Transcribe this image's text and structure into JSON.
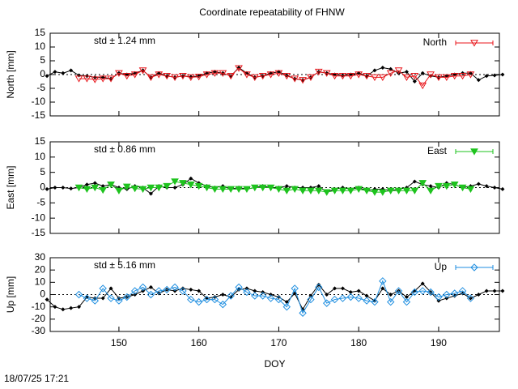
{
  "title": "Coordinate repeatability of FHNW",
  "footer": "18/07/25 17:21",
  "chart_data": [
    {
      "type": "line",
      "ylabel": "North [mm]",
      "annotation": "std ± 1.24 mm",
      "annotation_color": "#e8161b",
      "xlim": [
        141.4,
        197.6
      ],
      "ylim": [
        -15,
        15
      ],
      "yticks": [
        -15,
        -10,
        -5,
        0,
        5,
        10,
        15
      ],
      "series": [
        {
          "name": "North",
          "color": "#e8161b",
          "marker": "triangle-down-open",
          "x": [
            145,
            146,
            147,
            148,
            149,
            150,
            151,
            152,
            153,
            154,
            155,
            156,
            157,
            158,
            159,
            160,
            161,
            162,
            163,
            164,
            165,
            166,
            167,
            168,
            169,
            170,
            171,
            172,
            173,
            174,
            175,
            176,
            177,
            178,
            179,
            180,
            181,
            182,
            183,
            184,
            185,
            186,
            187,
            188,
            189,
            190,
            191,
            192,
            193,
            194
          ],
          "values": [
            -1.5,
            -1.5,
            -1.8,
            -1.5,
            -1.5,
            0.5,
            -0.5,
            0,
            1.5,
            -1,
            0,
            -0.5,
            -1,
            -0.5,
            -1,
            -0.8,
            0,
            0.5,
            0.5,
            -0.5,
            2.3,
            0,
            -1,
            -0.5,
            0,
            0.5,
            -0.5,
            -1.5,
            -2,
            -1,
            1,
            0.5,
            -0.5,
            -0.5,
            -0.5,
            0,
            -0.5,
            -1,
            -1,
            0.5,
            1.5,
            -1,
            -0.5,
            -4,
            0,
            -1,
            -1,
            -0.5,
            -0.5,
            0
          ]
        },
        {
          "color": "#000000",
          "marker": "diamond-small",
          "x": [
            141,
            142,
            143,
            144,
            145,
            146,
            147,
            148,
            149,
            150,
            151,
            152,
            153,
            154,
            155,
            156,
            157,
            158,
            159,
            160,
            161,
            162,
            163,
            164,
            165,
            166,
            167,
            168,
            169,
            170,
            171,
            172,
            173,
            174,
            175,
            176,
            177,
            178,
            179,
            180,
            181,
            182,
            183,
            184,
            185,
            186,
            187,
            188,
            189,
            190,
            191,
            192,
            193,
            194,
            195,
            196,
            197,
            198
          ],
          "values": [
            -0.5,
            1,
            0.5,
            1.5,
            -0.3,
            -0.5,
            -1,
            -1,
            -1.5,
            0.5,
            0,
            0.5,
            1.5,
            -1,
            0.5,
            -0.5,
            -1,
            -0.5,
            -0.8,
            -0.5,
            0.5,
            1,
            0.5,
            -0.5,
            2.5,
            0.5,
            -1,
            -0.5,
            0.5,
            1,
            -0.3,
            -1.5,
            -2,
            -1,
            1,
            0.5,
            0,
            -0.3,
            0,
            0.5,
            -0.5,
            1.5,
            2.5,
            2,
            0.5,
            1,
            -2.5,
            0.5,
            -0.5,
            -1,
            -0.5,
            0,
            0.5,
            0.5,
            -2,
            -0.5,
            -0.3,
            0
          ]
        }
      ]
    },
    {
      "type": "line",
      "ylabel": "East [mm]",
      "annotation": "std ± 0.86 mm",
      "annotation_color": "#1ec31e",
      "xlim": [
        141.4,
        197.6
      ],
      "ylim": [
        -15,
        15
      ],
      "yticks": [
        -15,
        -10,
        -5,
        0,
        5,
        10,
        15
      ],
      "series": [
        {
          "name": "East",
          "color": "#1ec31e",
          "marker": "triangle-down",
          "x": [
            145,
            146,
            147,
            148,
            149,
            150,
            151,
            152,
            153,
            154,
            155,
            156,
            157,
            158,
            159,
            160,
            161,
            162,
            163,
            164,
            165,
            166,
            167,
            168,
            169,
            170,
            171,
            172,
            173,
            174,
            175,
            176,
            177,
            178,
            179,
            180,
            181,
            182,
            183,
            184,
            185,
            186,
            187,
            188,
            189,
            190,
            191,
            192,
            193,
            194
          ],
          "values": [
            0,
            -0.5,
            0,
            -0.8,
            1,
            -1,
            0.3,
            -0.3,
            -0.5,
            0,
            0,
            0.5,
            2,
            1.5,
            1,
            0.5,
            0,
            -0.5,
            -0.5,
            -0.5,
            -0.5,
            -0.5,
            0,
            0,
            0,
            -0.5,
            -1,
            -0.5,
            -1,
            -1,
            -1,
            -1.5,
            -1,
            -1,
            -1,
            -0.5,
            -1,
            -1.5,
            -1.5,
            -1,
            -1,
            -1,
            -1,
            1.5,
            -1,
            0.5,
            0.5,
            1,
            0,
            -0.5
          ]
        },
        {
          "color": "#000000",
          "marker": "diamond-small",
          "x": [
            141,
            142,
            143,
            144,
            145,
            146,
            147,
            148,
            149,
            150,
            151,
            152,
            153,
            154,
            155,
            156,
            157,
            158,
            159,
            160,
            161,
            162,
            163,
            164,
            165,
            166,
            167,
            168,
            169,
            170,
            171,
            172,
            173,
            174,
            175,
            176,
            177,
            178,
            179,
            180,
            181,
            182,
            183,
            184,
            185,
            186,
            187,
            188,
            189,
            190,
            191,
            192,
            193,
            194,
            195,
            196,
            197,
            198
          ],
          "values": [
            -0.5,
            0,
            0,
            -0.3,
            0,
            1,
            1.5,
            0.5,
            1,
            0,
            -0.5,
            0.5,
            0,
            -2,
            0.5,
            0,
            0,
            1,
            3,
            1.5,
            0.5,
            0,
            0.5,
            -0.5,
            0,
            -0.5,
            0,
            0.5,
            0,
            0,
            0.5,
            0,
            0,
            0,
            0.5,
            -1.5,
            -0.5,
            0,
            -0.5,
            0,
            -1,
            -0.5,
            -0.5,
            -1,
            -0.5,
            0,
            2,
            1,
            0.5,
            0,
            1.5,
            1,
            0,
            0.5,
            1.2,
            0.5,
            0,
            -0.5
          ]
        }
      ]
    },
    {
      "type": "line",
      "ylabel": "Up [mm]",
      "annotation": "std ± 5.16 mm",
      "annotation_color": "#1e8ee0",
      "xlabel": "DOY",
      "xlim": [
        141.4,
        197.6
      ],
      "xticks": [
        150,
        160,
        170,
        180,
        190
      ],
      "ylim": [
        -30,
        30
      ],
      "yticks": [
        -30,
        -20,
        -10,
        0,
        10,
        20,
        30
      ],
      "series": [
        {
          "name": "Up",
          "color": "#1e8ee0",
          "marker": "diamond-open",
          "x": [
            145,
            146,
            147,
            148,
            149,
            150,
            151,
            152,
            153,
            154,
            155,
            156,
            157,
            158,
            159,
            160,
            161,
            162,
            163,
            164,
            165,
            166,
            167,
            168,
            169,
            170,
            171,
            172,
            173,
            174,
            175,
            176,
            177,
            178,
            179,
            180,
            181,
            182,
            183,
            184,
            185,
            186,
            187,
            188,
            189,
            190,
            191,
            192,
            193,
            194
          ],
          "values": [
            0,
            -3,
            -5,
            5,
            -3,
            -5,
            -2,
            3,
            6,
            0,
            3,
            4,
            6,
            3,
            -4,
            -6,
            -4,
            -4,
            -8,
            -1,
            6,
            2,
            -1,
            -1,
            -3,
            -4,
            -10,
            5,
            -15,
            -4,
            6,
            -7,
            -4,
            -3,
            -2,
            -3,
            -5,
            -6,
            11,
            -6,
            3,
            -6,
            2,
            3,
            2,
            -2,
            0,
            1,
            3,
            -3
          ]
        },
        {
          "color": "#000000",
          "marker": "diamond-small",
          "x": [
            141,
            142,
            143,
            144,
            145,
            146,
            147,
            148,
            149,
            150,
            151,
            152,
            153,
            154,
            155,
            156,
            157,
            158,
            159,
            160,
            161,
            162,
            163,
            164,
            165,
            166,
            167,
            168,
            169,
            170,
            171,
            172,
            173,
            174,
            175,
            176,
            177,
            178,
            179,
            180,
            181,
            182,
            183,
            184,
            185,
            186,
            187,
            188,
            189,
            190,
            191,
            192,
            193,
            194,
            195,
            196,
            197,
            198
          ],
          "values": [
            -4,
            -10,
            -12,
            -11,
            -10,
            -2,
            -3,
            -3,
            5,
            -3,
            -2,
            0,
            3,
            6,
            1,
            4,
            3,
            5,
            4,
            3,
            -3,
            -2,
            0,
            -2,
            4,
            5,
            3,
            2,
            0,
            -2,
            -6,
            1,
            -12,
            -1,
            8,
            0,
            5,
            5,
            2,
            3,
            -1,
            -5,
            5,
            0,
            3,
            -2,
            3,
            9,
            2,
            -5,
            -3,
            -1,
            1,
            -3,
            0,
            3,
            3,
            3
          ]
        }
      ]
    }
  ]
}
